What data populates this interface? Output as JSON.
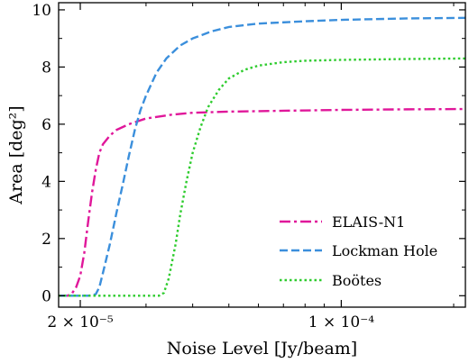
{
  "chart_data": {
    "type": "line",
    "title": "",
    "xlabel": "Noise Level [Jy/beam]",
    "ylabel": "Area [deg²]",
    "x_scale": "log",
    "xlim": [
      1.75e-05,
      0.000215
    ],
    "ylim": [
      -0.4,
      10.25
    ],
    "x_ticks": [
      {
        "value": 2e-05,
        "label": "2 × 10⁻⁵"
      },
      {
        "value": 0.0001,
        "label": "1 × 10⁻⁴"
      }
    ],
    "y_ticks": [
      {
        "value": 0,
        "label": "0"
      },
      {
        "value": 2,
        "label": "2"
      },
      {
        "value": 4,
        "label": "4"
      },
      {
        "value": 6,
        "label": "6"
      },
      {
        "value": 8,
        "label": "8"
      },
      {
        "value": 10,
        "label": "10"
      }
    ],
    "grid": false,
    "legend_position": "lower-right",
    "series": [
      {
        "name": "ELAIS-N1",
        "color": "#e0179a",
        "dash": "dash-dot",
        "points": [
          [
            1.75e-05,
            0
          ],
          [
            1.85e-05,
            0
          ],
          [
            1.9e-05,
            0.08
          ],
          [
            1.95e-05,
            0.3
          ],
          [
            2e-05,
            0.7
          ],
          [
            2.05e-05,
            1.5
          ],
          [
            2.1e-05,
            2.6
          ],
          [
            2.15e-05,
            3.6
          ],
          [
            2.2e-05,
            4.4
          ],
          [
            2.25e-05,
            5.0
          ],
          [
            2.3e-05,
            5.3
          ],
          [
            2.4e-05,
            5.6
          ],
          [
            2.5e-05,
            5.8
          ],
          [
            2.7e-05,
            6.0
          ],
          [
            3e-05,
            6.2
          ],
          [
            3.5e-05,
            6.33
          ],
          [
            4e-05,
            6.4
          ],
          [
            5e-05,
            6.44
          ],
          [
            7e-05,
            6.47
          ],
          [
            0.0001,
            6.5
          ],
          [
            0.00015,
            6.52
          ],
          [
            0.000215,
            6.53
          ]
        ]
      },
      {
        "name": "Lockman Hole",
        "color": "#3b8fdc",
        "dash": "dashed",
        "points": [
          [
            1.75e-05,
            0
          ],
          [
            2.1e-05,
            0
          ],
          [
            2.2e-05,
            0.05
          ],
          [
            2.25e-05,
            0.3
          ],
          [
            2.3e-05,
            0.8
          ],
          [
            2.4e-05,
            1.8
          ],
          [
            2.5e-05,
            2.9
          ],
          [
            2.6e-05,
            3.9
          ],
          [
            2.7e-05,
            4.9
          ],
          [
            2.8e-05,
            5.8
          ],
          [
            2.9e-05,
            6.5
          ],
          [
            3e-05,
            7.0
          ],
          [
            3.2e-05,
            7.8
          ],
          [
            3.4e-05,
            8.3
          ],
          [
            3.7e-05,
            8.75
          ],
          [
            4e-05,
            9.0
          ],
          [
            4.5e-05,
            9.25
          ],
          [
            5e-05,
            9.4
          ],
          [
            6e-05,
            9.52
          ],
          [
            8e-05,
            9.6
          ],
          [
            0.0001,
            9.65
          ],
          [
            0.00015,
            9.7
          ],
          [
            0.000215,
            9.72
          ]
        ]
      },
      {
        "name": "Boötes",
        "color": "#2ecc2e",
        "dash": "dotted",
        "points": [
          [
            1.75e-05,
            0
          ],
          [
            3.25e-05,
            0
          ],
          [
            3.35e-05,
            0.1
          ],
          [
            3.45e-05,
            0.6
          ],
          [
            3.6e-05,
            1.8
          ],
          [
            3.7e-05,
            2.8
          ],
          [
            3.85e-05,
            4.0
          ],
          [
            4e-05,
            5.0
          ],
          [
            4.2e-05,
            5.9
          ],
          [
            4.4e-05,
            6.6
          ],
          [
            4.7e-05,
            7.2
          ],
          [
            5e-05,
            7.6
          ],
          [
            5.5e-05,
            7.9
          ],
          [
            6e-05,
            8.05
          ],
          [
            7e-05,
            8.17
          ],
          [
            8e-05,
            8.22
          ],
          [
            0.0001,
            8.25
          ],
          [
            0.00015,
            8.28
          ],
          [
            0.000215,
            8.3
          ]
        ]
      }
    ]
  }
}
